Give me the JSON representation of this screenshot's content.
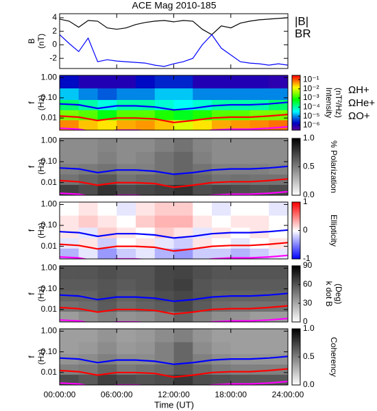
{
  "title": "ACE Mag 2010-185",
  "x_axis": {
    "xlim": [
      0,
      24
    ],
    "xticks": [
      {
        "value": 0,
        "label": "00:00:00"
      },
      {
        "value": 6,
        "label": "06:00:00"
      },
      {
        "value": 12,
        "label": "12:00:00"
      },
      {
        "value": 18,
        "label": "18:00:00"
      },
      {
        "value": 24,
        "label": "24:00:00"
      }
    ],
    "xlabel": "Time (UT)"
  },
  "gyrofrequencies": {
    "x": [
      0,
      2,
      4,
      6,
      8,
      10,
      12,
      14,
      16,
      18,
      20,
      22,
      24
    ],
    "series": [
      {
        "name": "ΩH+",
        "color": "#0000ff",
        "values": [
          0.05,
          0.045,
          0.03,
          0.04,
          0.04,
          0.035,
          0.025,
          0.03,
          0.04,
          0.045,
          0.045,
          0.05,
          0.06
        ]
      },
      {
        "name": "ΩHe+",
        "color": "#ff0000",
        "values": [
          0.0125,
          0.011,
          0.0075,
          0.01,
          0.01,
          0.009,
          0.006,
          0.0075,
          0.01,
          0.011,
          0.011,
          0.0125,
          0.015
        ]
      },
      {
        "name": "ΩO+",
        "color": "#ff00ff",
        "values": [
          0.0031,
          0.0028,
          0.0019,
          0.0025,
          0.0025,
          0.0022,
          0.0016,
          0.0019,
          0.0025,
          0.0028,
          0.0028,
          0.0031,
          0.0037
        ]
      }
    ]
  },
  "chart_data": [
    {
      "type": "line",
      "ylabel": [
        "B",
        "(nT)"
      ],
      "ylim": [
        -3.5,
        4.6
      ],
      "yticks": [
        -2,
        0,
        2,
        4
      ],
      "x": [
        0,
        1,
        2,
        3,
        4,
        5,
        6,
        7,
        8,
        9,
        10,
        11,
        12,
        13,
        14,
        15,
        16,
        17,
        18,
        19,
        20,
        21,
        22,
        23,
        24
      ],
      "series": [
        {
          "name": "|B|",
          "color": "#000000",
          "values": [
            3.8,
            3.5,
            2.6,
            3.6,
            3.5,
            2.5,
            2.3,
            2.5,
            3.0,
            3.3,
            3.5,
            3.6,
            3.4,
            3.6,
            3.5,
            2.3,
            1.5,
            2.8,
            2.5,
            3.2,
            3.5,
            3.7,
            3.8,
            3.9,
            4.0
          ]
        },
        {
          "name": "BR",
          "color": "#0000ff",
          "values": [
            1.5,
            0.2,
            -1.0,
            1.0,
            -2.5,
            -2.2,
            -2.4,
            -2.5,
            -2.6,
            -2.7,
            -3.0,
            -3.2,
            -2.8,
            -2.5,
            -2.0,
            0.0,
            1.5,
            -0.5,
            -1.5,
            -2.5,
            -2.7,
            -2.8,
            -3.0,
            -2.8,
            -3.0
          ]
        }
      ]
    },
    {
      "type": "spectrogram",
      "ylabel": [
        "f",
        "(Hz)"
      ],
      "ylim": [
        0.0025,
        1.3
      ],
      "yscale": "log",
      "yticks": [
        0.01,
        {
          "value": 0.1,
          "label": "0.10"
        },
        {
          "value": 1,
          "label": "1.00"
        }
      ],
      "ybins": [
        0.0025,
        0.008,
        0.025,
        0.08,
        0.3,
        1.3
      ],
      "z": [
        [
          0.06,
          0.03,
          0.02,
          0.04,
          0.05,
          0.03,
          0.01,
          0.02,
          0.04,
          0.05,
          0.06,
          0.08
        ],
        [
          0.003,
          0.002,
          0.0006,
          0.002,
          0.002,
          0.001,
          0.0005,
          0.001,
          0.002,
          0.002,
          0.003,
          0.003
        ],
        [
          0.0002,
          0.0001,
          5e-05,
          0.0001,
          0.0001,
          6e-05,
          4e-05,
          6e-05,
          0.0001,
          0.0001,
          0.0001,
          0.0002
        ],
        [
          2e-05,
          1e-05,
          6e-06,
          1e-05,
          1e-05,
          2e-05,
          2e-05,
          1e-05,
          1e-05,
          1e-05,
          1e-05,
          1e-05
        ],
        [
          2e-06,
          1e-06,
          1e-06,
          1e-06,
          2e-06,
          3e-06,
          3e-06,
          1e-06,
          1e-06,
          1e-06,
          1e-06,
          8e-07
        ]
      ],
      "colormap": "rainbow",
      "clim": [
        3e-07,
        0.3
      ],
      "cscale": "log",
      "cticks": [
        {
          "value": 1e-06,
          "label": "10⁻⁶"
        },
        {
          "value": 1e-05,
          "label": "10⁻⁵"
        },
        {
          "value": 0.0001,
          "label": "10⁻⁴"
        },
        {
          "value": 0.001,
          "label": "10⁻³"
        },
        {
          "value": 0.01,
          "label": "10⁻²"
        },
        {
          "value": 0.1,
          "label": "10⁻¹"
        }
      ],
      "clabel": [
        "Intensity",
        "(nT²/Hz)"
      ],
      "legend": "right"
    },
    {
      "type": "spectrogram",
      "ylabel": [
        "f",
        "(Hz)"
      ],
      "ylim": [
        0.0025,
        1.3
      ],
      "yscale": "log",
      "yticks": [
        0.01,
        {
          "value": 0.1,
          "label": "0.10"
        },
        {
          "value": 1,
          "label": "1.00"
        }
      ],
      "ybins": [
        0.0025,
        0.008,
        0.025,
        0.08,
        0.3,
        1.3
      ],
      "z": [
        [
          0.75,
          0.7,
          0.8,
          0.7,
          0.72,
          0.75,
          0.8,
          0.7,
          0.72,
          0.7,
          0.68,
          0.7
        ],
        [
          0.55,
          0.6,
          0.65,
          0.55,
          0.58,
          0.6,
          0.65,
          0.6,
          0.55,
          0.56,
          0.55,
          0.55
        ],
        [
          0.5,
          0.52,
          0.55,
          0.5,
          0.5,
          0.55,
          0.6,
          0.55,
          0.5,
          0.5,
          0.5,
          0.48
        ],
        [
          0.45,
          0.45,
          0.5,
          0.45,
          0.48,
          0.55,
          0.6,
          0.5,
          0.45,
          0.45,
          0.45,
          0.45
        ],
        [
          0.45,
          0.45,
          0.48,
          0.45,
          0.45,
          0.5,
          0.55,
          0.48,
          0.45,
          0.45,
          0.45,
          0.45
        ]
      ],
      "colormap": "gray",
      "clim": [
        0,
        1
      ],
      "cticks": [
        {
          "value": 0,
          "label": "0.0"
        },
        0.5,
        {
          "value": 1,
          "label": "1.0"
        }
      ],
      "clabel": [
        "% Polarization"
      ]
    },
    {
      "type": "spectrogram",
      "ylabel": [
        "f",
        "(Hz)"
      ],
      "ylim": [
        0.0025,
        1.3
      ],
      "yscale": "log",
      "yticks": [
        0.01,
        {
          "value": 0.1,
          "label": "0.10"
        },
        {
          "value": 1,
          "label": "1.00"
        }
      ],
      "ybins": [
        0.0025,
        0.008,
        0.025,
        0.08,
        0.3,
        1.3
      ],
      "z": [
        [
          -0.3,
          -0.1,
          -0.4,
          -0.2,
          -0.1,
          -0.3,
          -0.4,
          -0.2,
          -0.2,
          -0.3,
          -0.2,
          -0.1
        ],
        [
          -0.1,
          0.1,
          -0.2,
          0.0,
          0.1,
          -0.1,
          -0.2,
          0.1,
          0.0,
          -0.1,
          0.0,
          0.1
        ],
        [
          0.1,
          -0.1,
          0.2,
          0.1,
          0.0,
          0.2,
          0.1,
          -0.1,
          0.1,
          0.0,
          0.1,
          0.0
        ],
        [
          0.1,
          0.2,
          0.1,
          0.0,
          0.2,
          0.3,
          0.3,
          0.1,
          0.0,
          0.1,
          0.1,
          0.0
        ],
        [
          0.0,
          0.1,
          0.0,
          -0.1,
          0.1,
          0.2,
          0.2,
          0.0,
          -0.1,
          0.0,
          0.0,
          -0.1
        ]
      ],
      "colormap": "bwr",
      "clim": [
        -1,
        1
      ],
      "cticks": [
        -1,
        0,
        1
      ],
      "clabel": [
        "Ellipticity"
      ]
    },
    {
      "type": "spectrogram",
      "ylabel": [
        "f",
        "(Hz)"
      ],
      "ylim": [
        0.0025,
        1.3
      ],
      "yscale": "log",
      "yticks": [
        0.01,
        {
          "value": 0.1,
          "label": "0.10"
        },
        {
          "value": 1,
          "label": "1.00"
        }
      ],
      "ybins": [
        0.0025,
        0.008,
        0.025,
        0.08,
        0.3,
        1.3
      ],
      "z": [
        [
          35,
          40,
          45,
          38,
          40,
          45,
          55,
          45,
          40,
          38,
          35,
          35
        ],
        [
          50,
          52,
          58,
          52,
          55,
          58,
          65,
          58,
          52,
          50,
          50,
          50
        ],
        [
          55,
          55,
          60,
          55,
          58,
          62,
          65,
          60,
          55,
          55,
          55,
          55
        ],
        [
          58,
          58,
          60,
          58,
          60,
          65,
          68,
          60,
          58,
          58,
          58,
          58
        ],
        [
          60,
          60,
          62,
          60,
          60,
          65,
          66,
          62,
          60,
          60,
          60,
          60
        ]
      ],
      "colormap": "gray",
      "clim": [
        0,
        90
      ],
      "cticks": [
        0,
        30,
        60,
        90
      ],
      "clabel": [
        "k dot B",
        "(Deg)"
      ]
    },
    {
      "type": "spectrogram",
      "ylabel": [
        "f",
        "(Hz)"
      ],
      "ylim": [
        0.0025,
        1.3
      ],
      "yscale": "log",
      "yticks": [
        0.01,
        {
          "value": 0.1,
          "label": "0.10"
        },
        {
          "value": 1,
          "label": "1.00"
        }
      ],
      "ybins": [
        0.0025,
        0.008,
        0.025,
        0.08,
        0.3,
        1.3
      ],
      "z": [
        [
          0.7,
          0.65,
          0.75,
          0.7,
          0.68,
          0.7,
          0.78,
          0.7,
          0.68,
          0.66,
          0.65,
          0.65
        ],
        [
          0.5,
          0.52,
          0.6,
          0.52,
          0.55,
          0.58,
          0.65,
          0.58,
          0.52,
          0.5,
          0.5,
          0.5
        ],
        [
          0.42,
          0.45,
          0.5,
          0.45,
          0.45,
          0.5,
          0.6,
          0.5,
          0.45,
          0.42,
          0.42,
          0.42
        ],
        [
          0.38,
          0.4,
          0.45,
          0.4,
          0.42,
          0.5,
          0.6,
          0.45,
          0.4,
          0.38,
          0.38,
          0.38
        ],
        [
          0.38,
          0.38,
          0.42,
          0.38,
          0.4,
          0.45,
          0.5,
          0.42,
          0.38,
          0.38,
          0.38,
          0.38
        ]
      ],
      "colormap": "gray",
      "clim": [
        0,
        1
      ],
      "cticks": [
        {
          "value": 0,
          "label": "0.0"
        },
        0.5,
        {
          "value": 1,
          "label": "1.0"
        }
      ],
      "clabel": [
        "Coherency"
      ]
    }
  ]
}
